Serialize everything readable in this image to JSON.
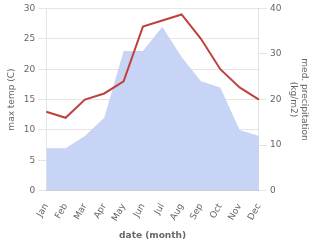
{
  "chart_data": {
    "type": "line",
    "xlabel": "date (month)",
    "ylabel": "max temp (C)",
    "y2label": "med. precipitation\n(kg/m2)",
    "categories": [
      "Jan",
      "Feb",
      "Mar",
      "Apr",
      "May",
      "Jun",
      "Jul",
      "Aug",
      "Sep",
      "Oct",
      "Nov",
      "Dec"
    ],
    "series": [
      {
        "type": "area",
        "color": "#c8d4f5",
        "values": [
          7,
          7,
          9,
          12,
          23,
          23,
          27,
          22,
          18,
          17,
          10,
          9
        ]
      },
      {
        "type": "line",
        "color": "#c0403a",
        "values": [
          13,
          12,
          15,
          16,
          18,
          27,
          28,
          29,
          25,
          20,
          17,
          15
        ]
      }
    ],
    "ylim": [
      0,
      30
    ],
    "yticks": [
      0,
      5,
      10,
      15,
      20,
      25,
      30
    ],
    "y2lim": [
      0,
      40
    ],
    "y2ticks": [
      0,
      10,
      20,
      30,
      40
    ],
    "grid": true
  }
}
